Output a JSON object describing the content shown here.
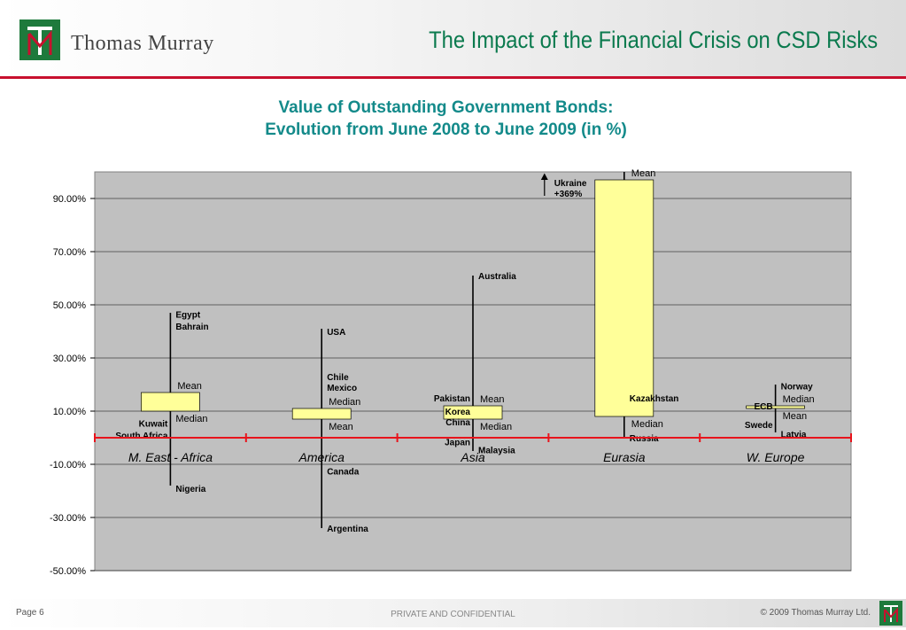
{
  "header": {
    "brand": "Thomas Murray",
    "slide_title": "The Impact of the Financial Crisis on CSD Risks"
  },
  "chart_title": {
    "line1": "Value of Outstanding Government Bonds:",
    "line2": "Evolution from June 2008 to June 2009 (in %)"
  },
  "chart_data": {
    "type": "range-box",
    "title": "Value of Outstanding Government Bonds: Evolution from June 2008 to June 2009 (in %)",
    "ylim": [
      -50,
      100
    ],
    "yticks": [
      90,
      70,
      50,
      30,
      10,
      -10,
      -30,
      -50
    ],
    "ytick_labels": [
      "90.00%",
      "70.00%",
      "50.00%",
      "30.00%",
      "10.00%",
      "-10.00%",
      "-30.00%",
      "-50.00%"
    ],
    "grid": true,
    "baseline": 0,
    "colors": {
      "box_fill": "#ffff99",
      "baseline": "#e8141c",
      "plot_bg": "#c0c0c0"
    },
    "regions": [
      {
        "name": "M. East - Africa",
        "max": 47,
        "min": -18,
        "mean": 17,
        "median": 10,
        "labels": [
          {
            "text": "Egypt",
            "value": 46.5,
            "side": "right"
          },
          {
            "text": "Bahrain",
            "value": 42,
            "side": "right"
          },
          {
            "text": "Kuwait",
            "value": 5.5,
            "side": "left"
          },
          {
            "text": "South Africa",
            "value": 1,
            "side": "left"
          },
          {
            "text": "Nigeria",
            "value": -19,
            "side": "right"
          }
        ]
      },
      {
        "name": "America",
        "max": 41,
        "min": -34,
        "mean": 7,
        "median": 11,
        "labels": [
          {
            "text": "USA",
            "value": 40,
            "side": "right"
          },
          {
            "text": "Chile",
            "value": 23,
            "side": "right"
          },
          {
            "text": "Mexico",
            "value": 19,
            "side": "right"
          },
          {
            "text": "Canada",
            "value": -12.5,
            "side": "right"
          },
          {
            "text": "Argentina",
            "value": -34,
            "side": "right"
          }
        ]
      },
      {
        "name": "Asia",
        "max": 61,
        "min": -5,
        "mean": 12,
        "median": 7,
        "labels": [
          {
            "text": "Australia",
            "value": 61,
            "side": "right"
          },
          {
            "text": "Pakistan",
            "value": 15,
            "side": "left"
          },
          {
            "text": "Korea",
            "value": 10,
            "side": "left"
          },
          {
            "text": "China",
            "value": 6,
            "side": "left"
          },
          {
            "text": "Japan",
            "value": -1.5,
            "side": "left"
          },
          {
            "text": "Malaysia",
            "value": -4.5,
            "side": "right"
          }
        ]
      },
      {
        "name": "Eurasia",
        "max": 100,
        "min": 0,
        "mean": 97,
        "median": 8,
        "labels": [
          {
            "text": "Kazakhstan",
            "value": 15,
            "side": "right"
          },
          {
            "text": "Russia",
            "value": 0,
            "side": "right"
          }
        ],
        "annotation": "Ukraine +369%"
      },
      {
        "name": "W. Europe",
        "max": 20,
        "min": 2,
        "mean": 11,
        "median": 12,
        "labels": [
          {
            "text": "Norway",
            "value": 19.5,
            "side": "right"
          },
          {
            "text": "ECB",
            "value": 12,
            "side": "left"
          },
          {
            "text": "Swede",
            "value": 5,
            "side": "left"
          },
          {
            "text": "Latvia",
            "value": 1.5,
            "side": "right"
          }
        ]
      }
    ],
    "mean_label": "Mean",
    "median_label": "Median"
  },
  "footer": {
    "page": "Page 6",
    "confidential": "PRIVATE AND CONFIDENTIAL",
    "copyright": "© 2009 Thomas Murray Ltd."
  }
}
